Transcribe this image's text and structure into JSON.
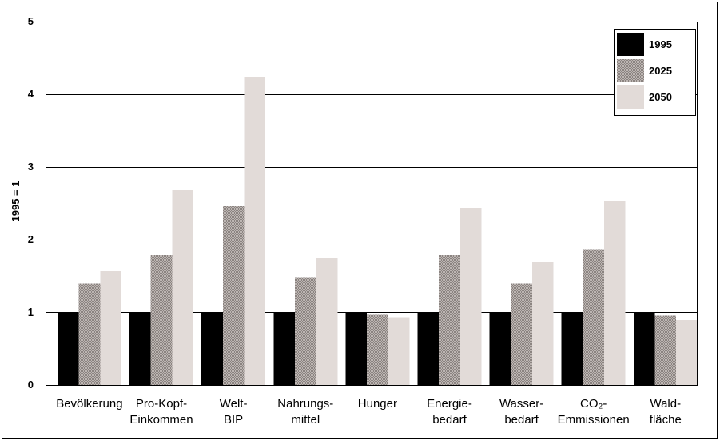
{
  "chart_data": {
    "type": "bar",
    "categories": [
      "Bevölkerung",
      "Pro-Kopf-\nEinkommen",
      "Welt-\nBIP",
      "Nahrungs-\nmittel",
      "Hunger",
      "Energie-\nbedarf",
      "Wasser-\nbedarf",
      "CO₂-\nEmmissionen",
      "Wald-\nfläche"
    ],
    "series": [
      {
        "name": "1995",
        "color": "#000000",
        "values": [
          1,
          1,
          1,
          1,
          1,
          1,
          1,
          1,
          1
        ]
      },
      {
        "name": "2025",
        "color": "#bdb6b3",
        "texture_color": "#8a8380",
        "values": [
          1.4,
          1.79,
          2.46,
          1.48,
          0.97,
          1.79,
          1.4,
          1.86,
          0.96
        ]
      },
      {
        "name": "2050",
        "color": "#e2dbd8",
        "values": [
          1.57,
          2.68,
          4.24,
          1.75,
          0.93,
          2.44,
          1.69,
          2.54,
          0.89
        ]
      }
    ],
    "ylabel": "1995 = 1",
    "ylim": [
      0,
      5
    ],
    "yticks": [
      0,
      1,
      2,
      3,
      4,
      5
    ],
    "grid": true,
    "legend": "top-right"
  }
}
